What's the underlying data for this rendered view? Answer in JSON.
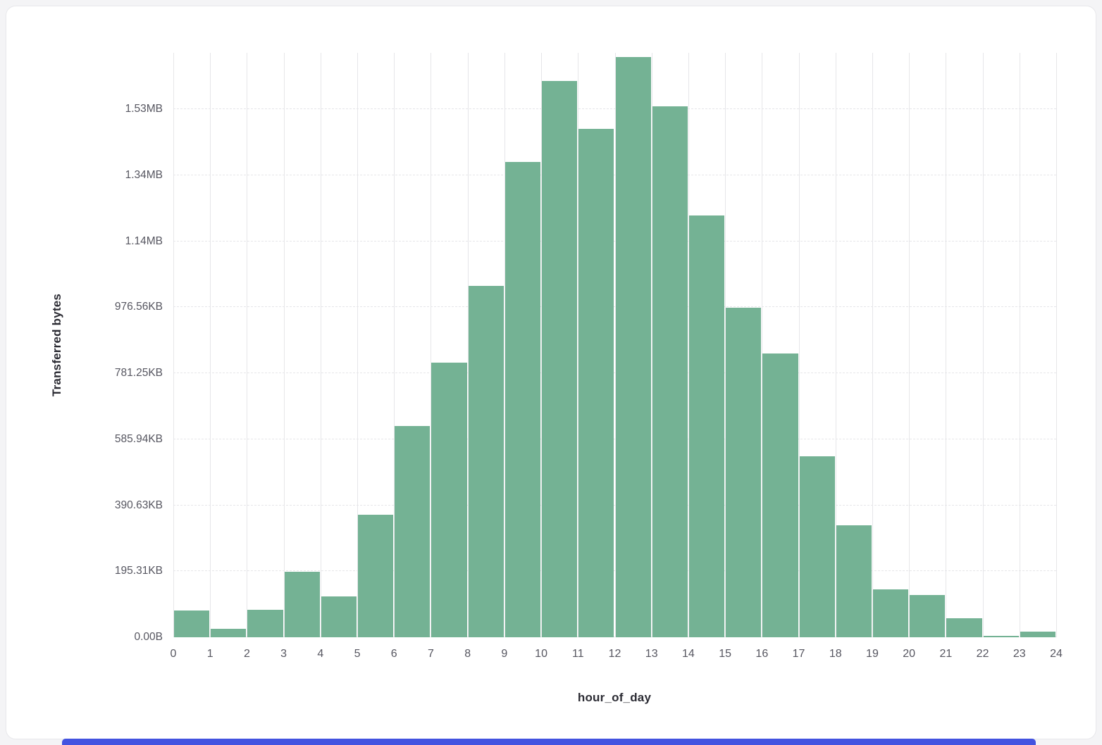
{
  "chart_data": {
    "type": "bar",
    "title": "",
    "xlabel": "hour_of_day",
    "ylabel": "Transferred bytes",
    "x_ticks": [
      "0",
      "1",
      "2",
      "3",
      "4",
      "5",
      "6",
      "7",
      "8",
      "9",
      "10",
      "11",
      "12",
      "13",
      "14",
      "15",
      "16",
      "17",
      "18",
      "19",
      "20",
      "21",
      "22",
      "23",
      "24"
    ],
    "bins": [
      0,
      1,
      2,
      3,
      4,
      5,
      6,
      7,
      8,
      9,
      10,
      11,
      12,
      13,
      14,
      15,
      16,
      17,
      18,
      19,
      20,
      21,
      22,
      23
    ],
    "values_bytes": [
      80000,
      25000,
      83000,
      199000,
      123000,
      372000,
      640000,
      833000,
      1065000,
      1440000,
      1685000,
      1540000,
      1758000,
      1608000,
      1278000,
      998000,
      860000,
      548000,
      340000,
      146000,
      128000,
      58000,
      5000,
      18000
    ],
    "y_ticks": [
      {
        "value": 0,
        "label": "0.00B"
      },
      {
        "value": 200000,
        "label": "195.31KB"
      },
      {
        "value": 400000,
        "label": "390.63KB"
      },
      {
        "value": 600000,
        "label": "585.94KB"
      },
      {
        "value": 800000,
        "label": "781.25KB"
      },
      {
        "value": 1000000,
        "label": "976.56KB"
      },
      {
        "value": 1200000,
        "label": "1.14MB"
      },
      {
        "value": 1400000,
        "label": "1.34MB"
      },
      {
        "value": 1600000,
        "label": "1.53MB"
      }
    ],
    "ylim": [
      0,
      1770000
    ],
    "grid": true,
    "legend": "none",
    "bar_color": "#74b294"
  },
  "scrollbar": {
    "color": "#4353e0"
  }
}
